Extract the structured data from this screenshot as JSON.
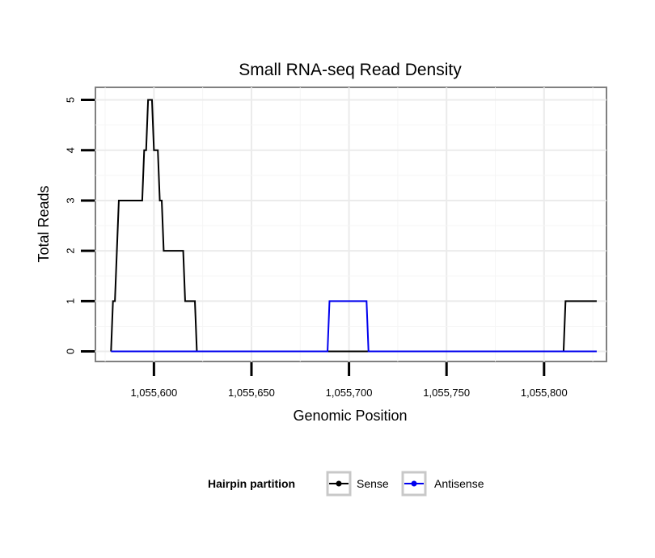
{
  "chart_data": {
    "type": "line",
    "title": "Small RNA-seq Read Density",
    "xlabel": "Genomic Position",
    "ylabel": "Total Reads",
    "xlim": [
      1055570,
      1055832
    ],
    "ylim": [
      -0.2,
      5.25
    ],
    "x_ticks": [
      1055600,
      1055650,
      1055700,
      1055750,
      1055800
    ],
    "x_tick_labels": [
      "1,055,600",
      "1,055,650",
      "1,055,700",
      "1,055,750",
      "1,055,800"
    ],
    "y_ticks": [
      0,
      1,
      2,
      3,
      4,
      5
    ],
    "y_tick_labels": [
      "0",
      "1",
      "2",
      "3",
      "4",
      "5"
    ],
    "grid": true,
    "legend": {
      "title": "Hairpin partition",
      "position": "bottom"
    },
    "series": [
      {
        "name": "Sense",
        "color": "#000000",
        "x": [
          1055578,
          1055579,
          1055580,
          1055581,
          1055582,
          1055583,
          1055594,
          1055595,
          1055596,
          1055597,
          1055598,
          1055599,
          1055600,
          1055601,
          1055602,
          1055603,
          1055604,
          1055605,
          1055606,
          1055607,
          1055608,
          1055609,
          1055615,
          1055616,
          1055617,
          1055620,
          1055621,
          1055622,
          1055623,
          1055810,
          1055811,
          1055827
        ],
        "values": [
          0,
          1,
          1,
          2,
          3,
          3,
          3,
          4,
          4,
          5,
          5,
          5,
          4,
          4,
          4,
          3,
          3,
          2,
          2,
          2,
          2,
          2,
          2,
          1,
          1,
          1,
          1,
          0,
          0,
          0,
          1,
          1
        ]
      },
      {
        "name": "Antisense",
        "color": "#0000ee",
        "x": [
          1055578,
          1055689,
          1055690,
          1055708,
          1055709,
          1055710,
          1055827
        ],
        "values": [
          0,
          0,
          1,
          1,
          1,
          0,
          0
        ]
      }
    ]
  }
}
